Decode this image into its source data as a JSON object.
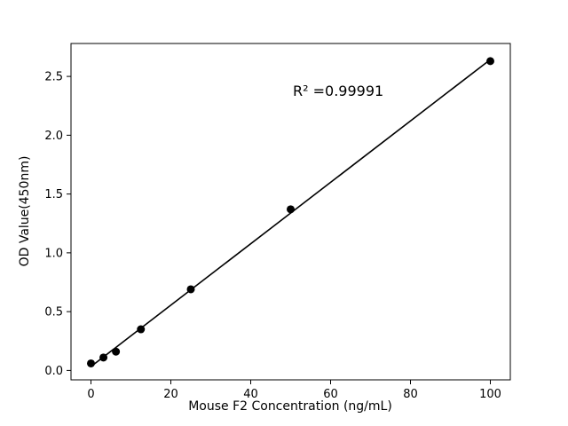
{
  "chart_data": {
    "type": "scatter",
    "title": "",
    "xlabel": "Mouse F2 Concentration (ng/mL)",
    "ylabel": "OD Value(450nm)",
    "annotation": "R² =0.99991",
    "x": [
      0,
      3.125,
      6.25,
      12.5,
      25,
      50,
      100
    ],
    "y": [
      0.06,
      0.11,
      0.16,
      0.35,
      0.69,
      1.37,
      2.63
    ],
    "xlim": [
      -5,
      105
    ],
    "ylim": [
      -0.08,
      2.78
    ],
    "xticks": [
      0,
      20,
      40,
      60,
      80,
      100
    ],
    "xtick_labels": [
      "0",
      "20",
      "40",
      "60",
      "80",
      "100"
    ],
    "yticks": [
      0.0,
      0.5,
      1.0,
      1.5,
      2.0,
      2.5
    ],
    "ytick_labels": [
      "0.0",
      "0.5",
      "1.0",
      "1.5",
      "2.0",
      "2.5"
    ],
    "line": "linear_fit",
    "grid": false,
    "marker_color": "#000000",
    "line_color": "#000000",
    "background_color": "#ffffff"
  }
}
